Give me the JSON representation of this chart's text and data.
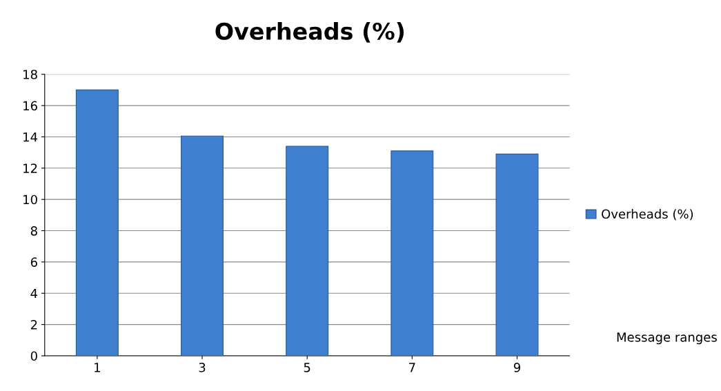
{
  "chart_data": {
    "type": "bar",
    "title": "Overheads (%)",
    "xlabel": "Message ranges",
    "categories": [
      "1",
      "3",
      "5",
      "7",
      "9"
    ],
    "series": [
      {
        "name": "Overheads (%)",
        "color": "#3f7fcf",
        "values": [
          17,
          14.05,
          13.4,
          13.1,
          12.9
        ]
      }
    ],
    "ylim": [
      0,
      18
    ],
    "yticks": [
      0,
      2,
      4,
      6,
      8,
      10,
      12,
      14,
      16,
      18
    ],
    "grid": "y",
    "legend": "right"
  }
}
